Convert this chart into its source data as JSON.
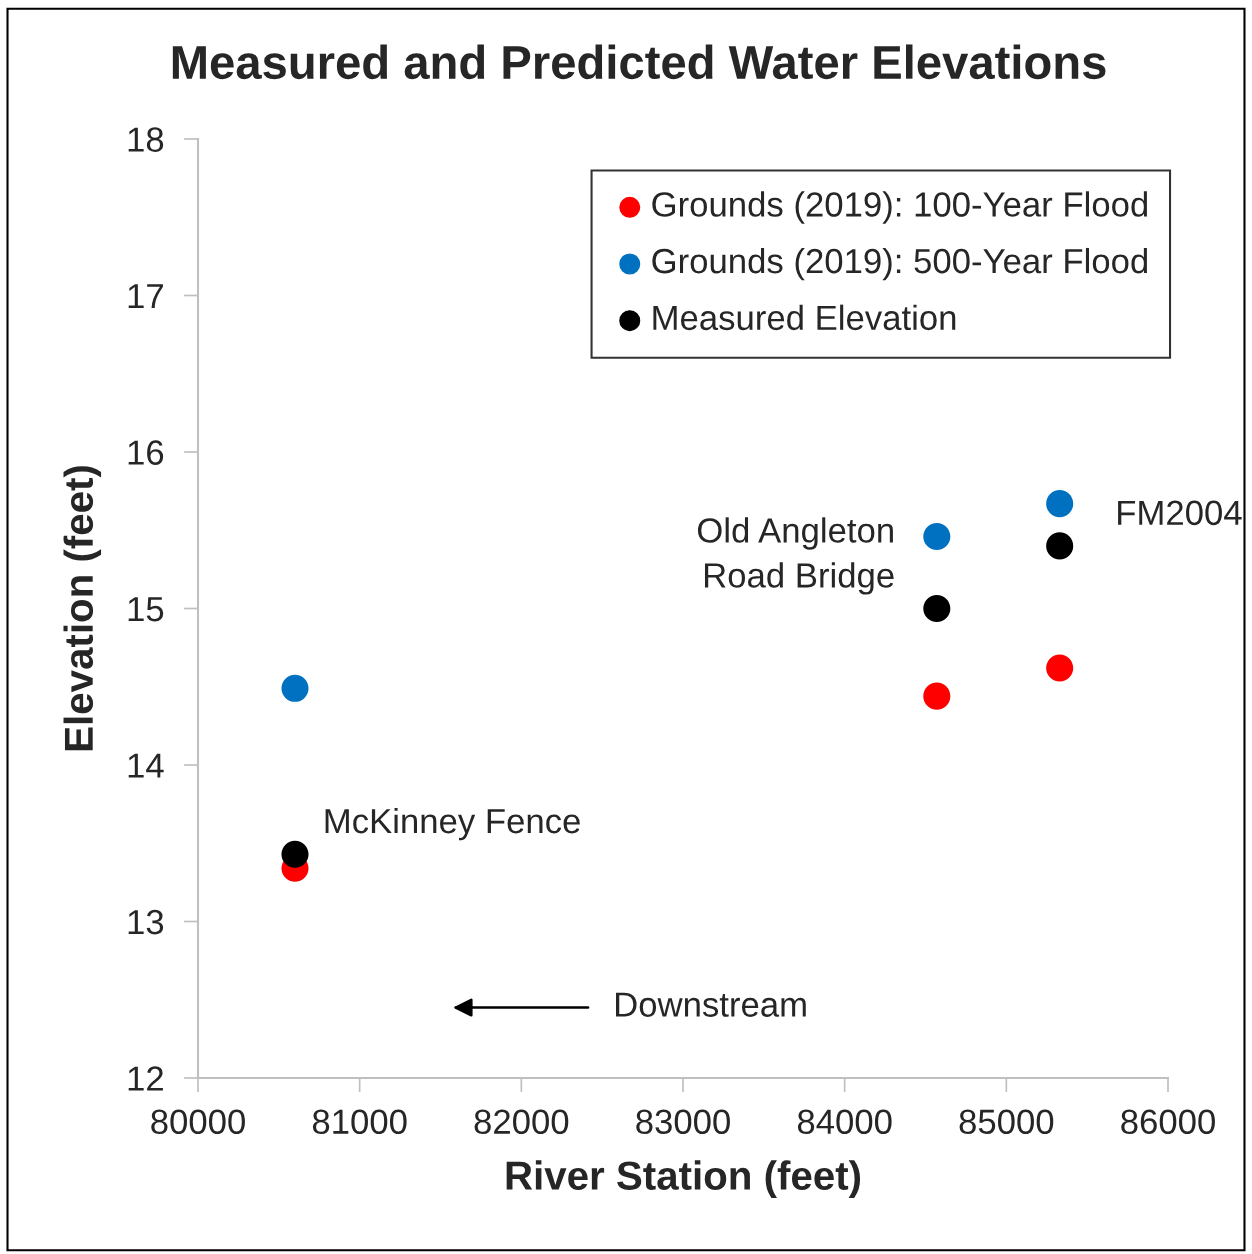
{
  "chart_data": {
    "type": "scatter",
    "title": "Measured and Predicted Water Elevations",
    "xlabel": "River Station (feet)",
    "ylabel": "Elevation (feet)",
    "xlim": [
      80000,
      86000
    ],
    "xticks": [
      80000,
      81000,
      82000,
      83000,
      84000,
      85000,
      86000
    ],
    "ylim": [
      12,
      18
    ],
    "yticks": [
      12,
      13,
      14,
      15,
      16,
      17,
      18
    ],
    "grid": false,
    "legend": "top right",
    "marker": "circle",
    "series": [
      {
        "name": "Grounds (2019): 100-Year Flood",
        "color": "#ff0000",
        "x": [
          80600,
          84570,
          85330
        ],
        "values": [
          13.34,
          14.44,
          14.62
        ]
      },
      {
        "name": "Grounds (2019): 500-Year Flood",
        "color": "#0070c0",
        "x": [
          80600,
          84570,
          85330
        ],
        "values": [
          14.49,
          15.46,
          15.67
        ]
      },
      {
        "name": "Measured Elevation",
        "color": "#000000",
        "x": [
          80600,
          84570,
          85330
        ],
        "values": [
          13.43,
          15.0,
          15.4
        ]
      }
    ],
    "annotations": [
      {
        "text": "McKinney Fence",
        "x": 80600,
        "y": 13.43
      },
      {
        "text": "Old Angleton\nRoad Bridge",
        "x": 84570,
        "y": 15.0
      },
      {
        "text": "FM2004",
        "x": 85330,
        "y": 15.4
      },
      "Downstream"
    ]
  }
}
